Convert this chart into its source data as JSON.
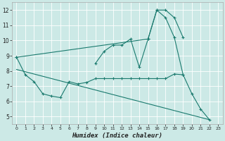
{
  "xlabel": "Humidex (Indice chaleur)",
  "background_color": "#cce9e6",
  "grid_color": "#ffffff",
  "line_color": "#1a7a6e",
  "xlim": [
    -0.5,
    23.5
  ],
  "ylim": [
    4.5,
    12.5
  ],
  "yticks": [
    5,
    6,
    7,
    8,
    9,
    10,
    11,
    12
  ],
  "xticks": [
    0,
    1,
    2,
    3,
    4,
    5,
    6,
    7,
    8,
    9,
    10,
    11,
    12,
    13,
    14,
    15,
    16,
    17,
    18,
    19,
    20,
    21,
    22,
    23
  ],
  "line1_x": [
    0,
    1,
    2,
    3,
    4,
    5,
    6,
    7,
    8,
    9,
    10,
    11,
    12,
    13,
    14,
    15,
    16,
    17,
    18,
    19
  ],
  "line1_y": [
    8.9,
    7.75,
    7.3,
    6.5,
    6.35,
    6.25,
    7.3,
    7.15,
    7.25,
    7.5,
    7.5,
    7.5,
    7.5,
    7.5,
    7.5,
    7.5,
    7.5,
    7.5,
    7.8,
    7.75
  ],
  "line2_x": [
    9,
    10,
    11,
    12,
    13,
    14,
    15,
    16,
    17,
    18,
    19
  ],
  "line2_y": [
    8.5,
    9.3,
    9.7,
    9.7,
    10.1,
    8.25,
    10.1,
    12.0,
    12.0,
    11.5,
    10.2
  ],
  "line3_x": [
    0,
    15,
    16,
    17,
    18,
    19,
    20,
    21,
    22
  ],
  "line3_y": [
    8.9,
    10.1,
    12.0,
    11.5,
    10.2,
    7.75,
    6.5,
    5.5,
    4.8
  ],
  "line4_x": [
    0,
    22
  ],
  "line4_y": [
    8.1,
    4.8
  ]
}
